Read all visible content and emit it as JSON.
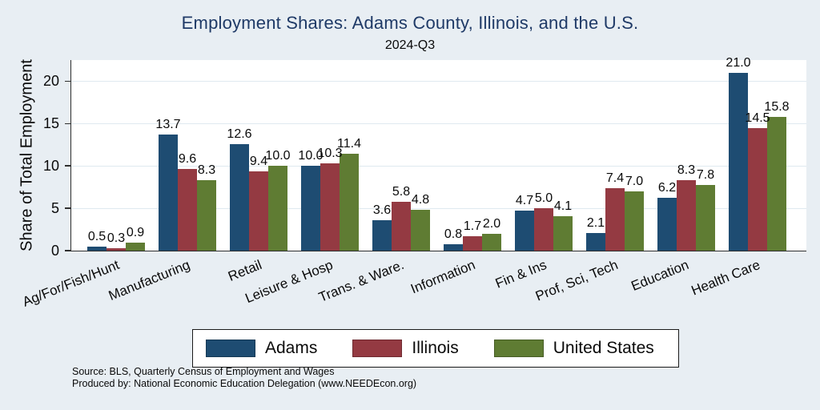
{
  "page": {
    "title": "Employment Shares: Adams County, Illinois, and the U.S.",
    "subtitle": "2024-Q3"
  },
  "chart_data": {
    "type": "bar",
    "title": "Employment Shares: Adams County, Illinois, and the U.S.",
    "subtitle": "2024-Q3",
    "xlabel": "",
    "ylabel": "Share of Total Employment",
    "ylim": [
      0,
      22.5
    ],
    "yticks": [
      0,
      5,
      10,
      15,
      20
    ],
    "grid": true,
    "legend_position": "bottom",
    "value_labels": true,
    "categories": [
      "Ag/For/Fish/Hunt",
      "Manufacturing",
      "Retail",
      "Leisure & Hosp",
      "Trans. & Ware.",
      "Information",
      "Fin & Ins",
      "Prof, Sci, Tech",
      "Education",
      "Health Care"
    ],
    "series": [
      {
        "name": "Adams",
        "color": "#1e4c72",
        "values": [
          0.5,
          13.7,
          12.6,
          10.0,
          3.6,
          0.8,
          4.7,
          2.1,
          6.2,
          21.0
        ]
      },
      {
        "name": "Illinois",
        "color": "#943a42",
        "values": [
          0.3,
          9.6,
          9.4,
          10.3,
          5.8,
          1.7,
          5.0,
          7.4,
          8.3,
          14.5
        ]
      },
      {
        "name": "United States",
        "color": "#5f7c33",
        "values": [
          0.9,
          8.3,
          10.0,
          11.4,
          4.8,
          2.0,
          4.1,
          7.0,
          7.8,
          15.8
        ]
      }
    ]
  },
  "footer": {
    "source": "Source: BLS, Quarterly Census of Employment and Wages",
    "produced_by": "Produced by: National Economic Education Delegation (www.NEEDEcon.org)"
  },
  "colors": {
    "background": "#e8eef3",
    "plot_background": "#ffffff",
    "title": "#1f3a67",
    "gridline": "#dfe9f0",
    "axis": "#2f2f2f"
  }
}
